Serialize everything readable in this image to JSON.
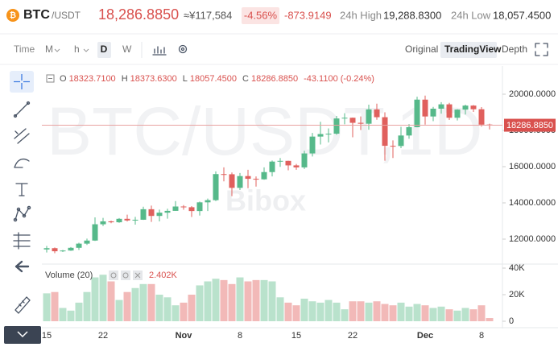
{
  "header": {
    "base": "BTC",
    "quote": "/USDT",
    "price": "18,286.8850",
    "cny": "≈¥117,584",
    "change_pct": "-4.56%",
    "change": "-873.9149",
    "high_label": "24h High",
    "high": "19,288.8300",
    "low_label": "24h Low",
    "low": "18,057.4500"
  },
  "toolbar": {
    "time": "Time",
    "intervals": [
      "M",
      "h",
      "D",
      "W"
    ],
    "views": [
      "Original",
      "TradingView",
      "Depth"
    ]
  },
  "legend": {
    "items": [
      {
        "key": "O",
        "value": "18323.7100"
      },
      {
        "key": "H",
        "value": "18373.6300"
      },
      {
        "key": "L",
        "value": "18057.4500"
      },
      {
        "key": "C",
        "value": "18286.8850"
      }
    ],
    "change": "-43.1100 (-0.24%)"
  },
  "chart_data": {
    "type": "candlestick",
    "watermark": "BTC/USDT,1D",
    "brand": "Bibox",
    "up_color": "#56b98a",
    "down_color": "#e0605d",
    "categories": [
      "15",
      null,
      null,
      null,
      null,
      null,
      null,
      "22",
      null,
      null,
      null,
      null,
      null,
      null,
      null,
      null,
      null,
      "Nov",
      null,
      null,
      null,
      null,
      null,
      null,
      "8",
      null,
      null,
      null,
      null,
      null,
      null,
      "15",
      null,
      null,
      null,
      null,
      null,
      null,
      "22",
      null,
      null,
      null,
      null,
      null,
      null,
      null,
      null,
      "Dec",
      null,
      null,
      null,
      null,
      null,
      null,
      "8",
      null
    ],
    "open": [
      11430,
      11500,
      11330,
      11370,
      11520,
      11750,
      11920,
      12820,
      12980,
      12930,
      13120,
      13030,
      13070,
      13650,
      13280,
      13460,
      13560,
      13800,
      13760,
      13550,
      14030,
      14150,
      15590,
      15580,
      14830,
      15480,
      15330,
      15300,
      15700,
      16280,
      16320,
      16070,
      15960,
      16730,
      17660,
      17800,
      17820,
      18660,
      18700,
      18420,
      18370,
      19160,
      18730,
      17150,
      17140,
      17720,
      18180,
      19700,
      18770,
      19200,
      19440,
      18700,
      19150,
      19370,
      19170,
      18323.71
    ],
    "high": [
      11620,
      11540,
      11400,
      11560,
      11800,
      12030,
      13200,
      13170,
      13020,
      13160,
      13350,
      13230,
      13790,
      13850,
      13630,
      13680,
      14100,
      13880,
      13820,
      14070,
      14240,
      15740,
      15960,
      15680,
      15650,
      15830,
      15460,
      15960,
      16340,
      16480,
      16330,
      16150,
      16880,
      17860,
      18480,
      18110,
      18800,
      18950,
      18710,
      18770,
      19420,
      19480,
      19000,
      17450,
      18200,
      18350,
      19860,
      19920,
      19300,
      19560,
      19520,
      19170,
      19420,
      19400,
      19290,
      18373.63
    ],
    "low": [
      11260,
      11220,
      11290,
      11350,
      11400,
      11680,
      11900,
      12720,
      12880,
      12900,
      12970,
      12800,
      13060,
      12950,
      12980,
      13130,
      13560,
      13620,
      13220,
      13300,
      13550,
      14100,
      15190,
      14370,
      14710,
      14810,
      14900,
      15280,
      15460,
      15990,
      15800,
      15830,
      15870,
      16560,
      17220,
      17340,
      17760,
      18340,
      17620,
      18020,
      18040,
      18590,
      16330,
      16480,
      17020,
      17540,
      18170,
      18320,
      18510,
      18930,
      18580,
      18550,
      18880,
      19020,
      18210,
      18057.45
    ],
    "close": [
      11500,
      11330,
      11370,
      11520,
      11750,
      11920,
      12820,
      12980,
      12930,
      13120,
      13030,
      13070,
      13650,
      13280,
      13460,
      13560,
      13800,
      13760,
      13550,
      14030,
      14150,
      15590,
      15580,
      14830,
      15480,
      15330,
      15300,
      15700,
      16280,
      16320,
      16070,
      15960,
      16730,
      17660,
      17800,
      17820,
      18660,
      18700,
      18420,
      18370,
      19160,
      18730,
      17150,
      17140,
      17720,
      18180,
      19700,
      18770,
      19200,
      19440,
      18700,
      19150,
      19370,
      19170,
      18320,
      18286.885
    ],
    "ylim": [
      11000,
      21000
    ],
    "yticks": [
      {
        "value": 12000,
        "label": "12000.0000"
      },
      {
        "value": 14000,
        "label": "14000.0000"
      },
      {
        "value": 16000,
        "label": "16000.0000"
      },
      {
        "value": 18000,
        "label": "18000.0000"
      },
      {
        "value": 20000,
        "label": "20000.0000"
      }
    ],
    "last_price": {
      "value": 18286.885,
      "label": "18286.8850"
    },
    "volume": {
      "name": "Volume (20)",
      "values": [
        21000,
        22000,
        10000,
        8000,
        14000,
        22000,
        33000,
        35000,
        30000,
        16000,
        22000,
        25000,
        28000,
        28000,
        20000,
        18000,
        12000,
        14000,
        20000,
        27000,
        30000,
        32000,
        31000,
        28000,
        33000,
        30000,
        31000,
        31000,
        30000,
        18000,
        14000,
        12000,
        17000,
        15000,
        14000,
        16000,
        14000,
        9000,
        15000,
        15000,
        14000,
        15000,
        13000,
        12000,
        14000,
        11000,
        13000,
        12000,
        10000,
        11000,
        9000,
        8000,
        10000,
        9000,
        12000,
        2402
      ],
      "current_label": "2.402K",
      "up_color": "#b9e2cc",
      "down_color": "#f2b9b8",
      "ylim": [
        0,
        40000
      ],
      "yticks": [
        0,
        {
          "value": 20000,
          "label": "20K"
        },
        {
          "value": 40000,
          "label": "40K"
        }
      ]
    }
  }
}
